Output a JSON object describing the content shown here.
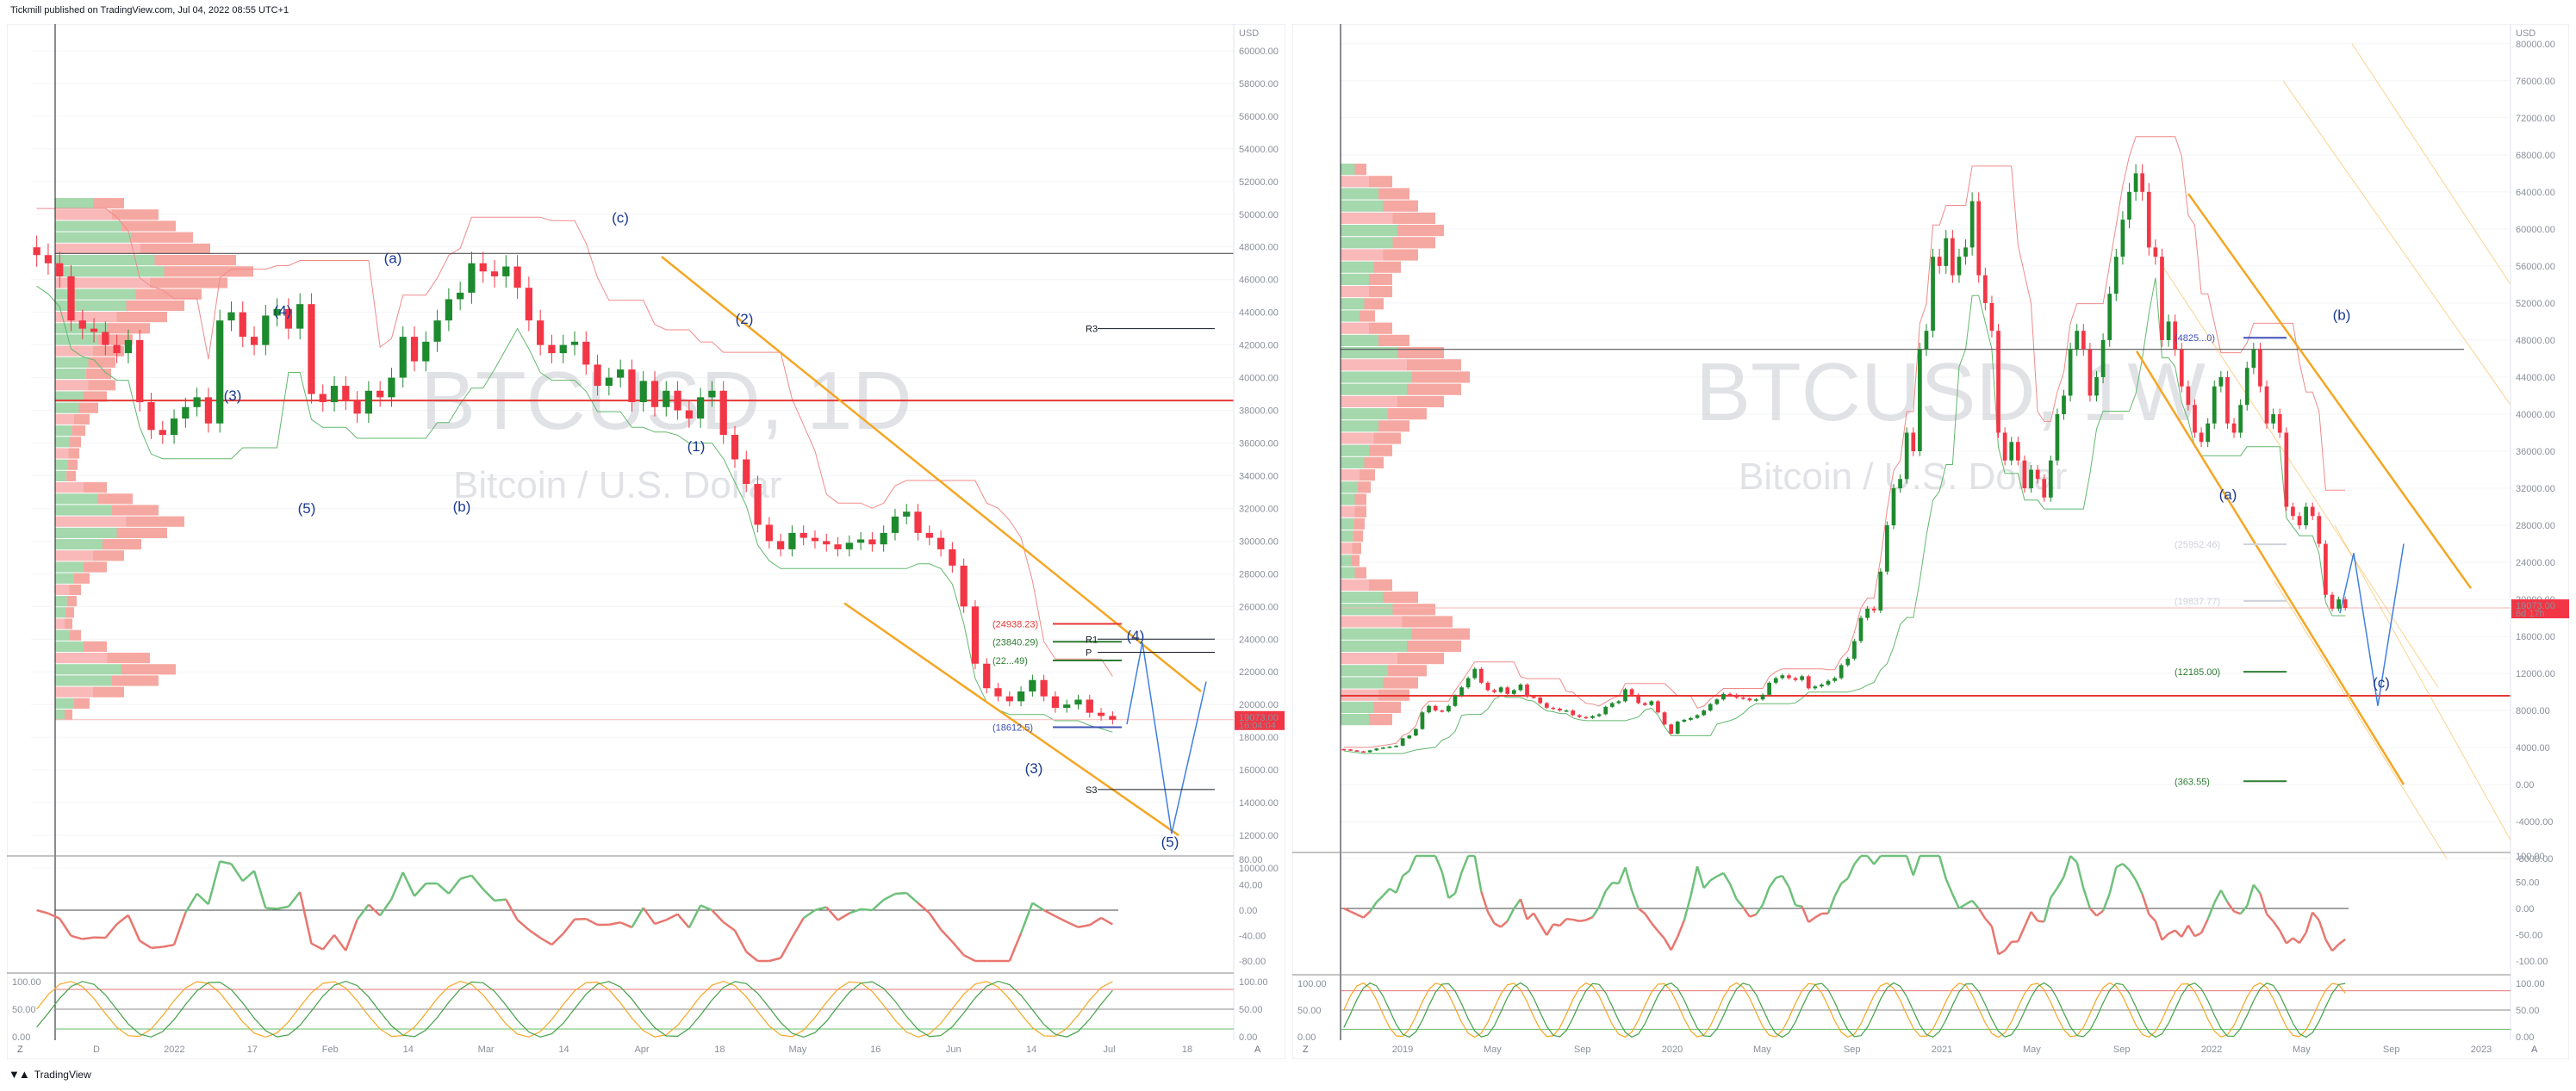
{
  "header": {
    "published": "Tickmill published on TradingView.com, Jul 04, 2022 08:55 UTC+1"
  },
  "footer": {
    "brand": "TradingView",
    "logo": "tradingview-logo-icon"
  },
  "colors": {
    "bull": "#1e8a2e",
    "bear": "#f23645",
    "channel": "#f5a623",
    "projection": "#3f7fe0",
    "wave": "#1b3a8f",
    "rsi_up": "#6ec07a",
    "rsi_down": "#e8766f"
  },
  "chart_data": [
    {
      "type": "candlestick",
      "symbol": "BTCUSD",
      "interval": "1D",
      "watermark": {
        "title": "BTCUSD, 1D",
        "subtitle": "Bitcoin / U.S. Dollar"
      },
      "price_axis": {
        "currency": "USD",
        "ticks": [
          "60000.00",
          "58000.00",
          "56000.00",
          "54000.00",
          "52000.00",
          "50000.00",
          "48000.00",
          "46000.00",
          "44000.00",
          "42000.00",
          "40000.00",
          "38000.00",
          "36000.00",
          "34000.00",
          "32000.00",
          "30000.00",
          "28000.00",
          "26000.00",
          "24000.00",
          "22000.00",
          "20000.00",
          "18000.00",
          "16000.00",
          "14000.00",
          "12000.00",
          "10000.00"
        ],
        "ylim": [
          10000,
          61000
        ]
      },
      "time_axis": {
        "ticks": [
          "D",
          "2022",
          "17",
          "Feb",
          "14",
          "Mar",
          "14",
          "Apr",
          "18",
          "May",
          "16",
          "Jun",
          "14",
          "Jul",
          "18"
        ]
      },
      "last_price": {
        "value": "19073.00",
        "countdown": "16:04:04"
      },
      "closes": [
        47500,
        47000,
        46200,
        43500,
        43000,
        42800,
        42000,
        41500,
        42300,
        38500,
        36800,
        36500,
        37500,
        38200,
        38800,
        37200,
        43500,
        44000,
        42500,
        42000,
        43800,
        44200,
        43000,
        44500,
        39000,
        38500,
        39500,
        38600,
        37800,
        39200,
        38800,
        40000,
        42500,
        41000,
        42200,
        43500,
        44800,
        45200,
        47000,
        46500,
        46200,
        46800,
        45500,
        43500,
        42000,
        41500,
        42000,
        42200,
        40800,
        39500,
        40000,
        40500,
        38500,
        39800,
        38200,
        39200,
        38000,
        37500,
        38800,
        39200,
        36500,
        35000,
        33500,
        31000,
        30000,
        29500,
        30500,
        30200,
        30000,
        29800,
        29500,
        29900,
        30100,
        29800,
        30500,
        31500,
        31800,
        30500,
        30200,
        29500,
        28500,
        26000,
        22500,
        21000,
        20500,
        20200,
        20800,
        21500,
        20500,
        19800,
        20000,
        20300,
        19500,
        19300,
        19073
      ],
      "levels": [
        {
          "label": "(24938.23)",
          "value": 24938
        },
        {
          "label": "(23840.29)",
          "value": 23840
        },
        {
          "label": "(22...49)",
          "value": 22700
        },
        {
          "label": "(18612.5)",
          "value": 18612
        }
      ],
      "pivots": [
        {
          "label": "R3",
          "value": 43000
        },
        {
          "label": "R1",
          "value": 24000
        },
        {
          "label": "P",
          "value": 23200
        },
        {
          "label": "S3",
          "value": 14800
        }
      ],
      "waves": [
        "(a)",
        "(b)",
        "(c)",
        "(4)",
        "(5)",
        "(2)",
        "(1)",
        "(3)",
        "(4)",
        "(5)",
        "(3)"
      ],
      "indicators": [
        {
          "name": "RSI",
          "ticks": [
            "80.00",
            "40.00",
            "0.00",
            "-40.00",
            "-80.00"
          ]
        },
        {
          "name": "Stochastic",
          "ticks": [
            "100.00",
            "50.00",
            "0.00"
          ]
        }
      ]
    },
    {
      "type": "candlestick",
      "symbol": "BTCUSD",
      "interval": "1W",
      "watermark": {
        "title": "BTCUSD, 1W",
        "subtitle": "Bitcoin / U.S. Dollar"
      },
      "price_axis": {
        "currency": "USD",
        "ticks": [
          "80000.00",
          "76000.00",
          "72000.00",
          "68000.00",
          "64000.00",
          "60000.00",
          "56000.00",
          "52000.00",
          "48000.00",
          "44000.00",
          "40000.00",
          "36000.00",
          "32000.00",
          "28000.00",
          "24000.00",
          "20000.00",
          "16000.00",
          "12000.00",
          "8000.00",
          "4000.00",
          "0.00",
          "-4000.00",
          "-8000.00"
        ],
        "ylim": [
          -9000,
          81000
        ]
      },
      "time_axis": {
        "ticks": [
          "2019",
          "May",
          "Sep",
          "2020",
          "May",
          "Sep",
          "2021",
          "May",
          "Sep",
          "2022",
          "May",
          "Sep",
          "2023"
        ]
      },
      "last_price": {
        "value": "19073.00",
        "countdown": "6d 17h"
      },
      "closes": [
        3800,
        3700,
        3600,
        3500,
        3700,
        3900,
        4000,
        4100,
        4200,
        5000,
        5300,
        6000,
        7800,
        8500,
        8000,
        7900,
        8500,
        9600,
        10500,
        11500,
        12500,
        11000,
        10200,
        10000,
        10500,
        9800,
        10200,
        10800,
        9500,
        9400,
        8800,
        8300,
        8200,
        8000,
        8000,
        7500,
        7300,
        7200,
        7400,
        7600,
        8400,
        8800,
        9000,
        10300,
        9700,
        8800,
        8600,
        9000,
        7800,
        6500,
        5500,
        6800,
        7000,
        7200,
        7500,
        8000,
        8700,
        9200,
        9800,
        9700,
        9400,
        9300,
        9100,
        9200,
        9700,
        11000,
        11500,
        11800,
        11500,
        11300,
        11700,
        10400,
        10600,
        10800,
        11200,
        11500,
        12900,
        13600,
        15500,
        18000,
        19000,
        18800,
        23000,
        28000,
        32000,
        33000,
        38000,
        36000,
        47000,
        49000,
        57000,
        56000,
        59000,
        55000,
        57000,
        58000,
        63000,
        55000,
        52000,
        49000,
        38000,
        35000,
        37000,
        35000,
        32000,
        34000,
        33000,
        31000,
        35000,
        40000,
        42000,
        47000,
        49000,
        47000,
        42000,
        44000,
        48000,
        53000,
        57000,
        61000,
        64000,
        66000,
        64000,
        58000,
        57000,
        48000,
        50000,
        47000,
        43000,
        41000,
        38000,
        37000,
        39000,
        43000,
        44000,
        39000,
        38000,
        41000,
        45000,
        47000,
        43000,
        39000,
        40000,
        38000,
        30000,
        29000,
        28000,
        30000,
        29000,
        26000,
        20500,
        19000,
        20000,
        19073
      ],
      "levels": [
        {
          "label": "(4825...0)",
          "value": 48250
        },
        {
          "label": "(25952.46)",
          "value": 25952
        },
        {
          "label": "(19837.77)",
          "value": 19837
        },
        {
          "label": "(12185.00)",
          "value": 12185
        },
        {
          "label": "(363.55)",
          "value": 363
        }
      ],
      "waves": [
        "(b)",
        "(a)",
        "(c)"
      ],
      "indicators": [
        {
          "name": "RSI",
          "ticks": [
            "100.00",
            "50.00",
            "0.00",
            "-50.00",
            "-100.00"
          ]
        },
        {
          "name": "Stochastic",
          "ticks": [
            "100.00",
            "50.00",
            "0.00"
          ]
        }
      ]
    }
  ],
  "toolbar": {
    "left_z": "Z",
    "right_a": "A"
  }
}
